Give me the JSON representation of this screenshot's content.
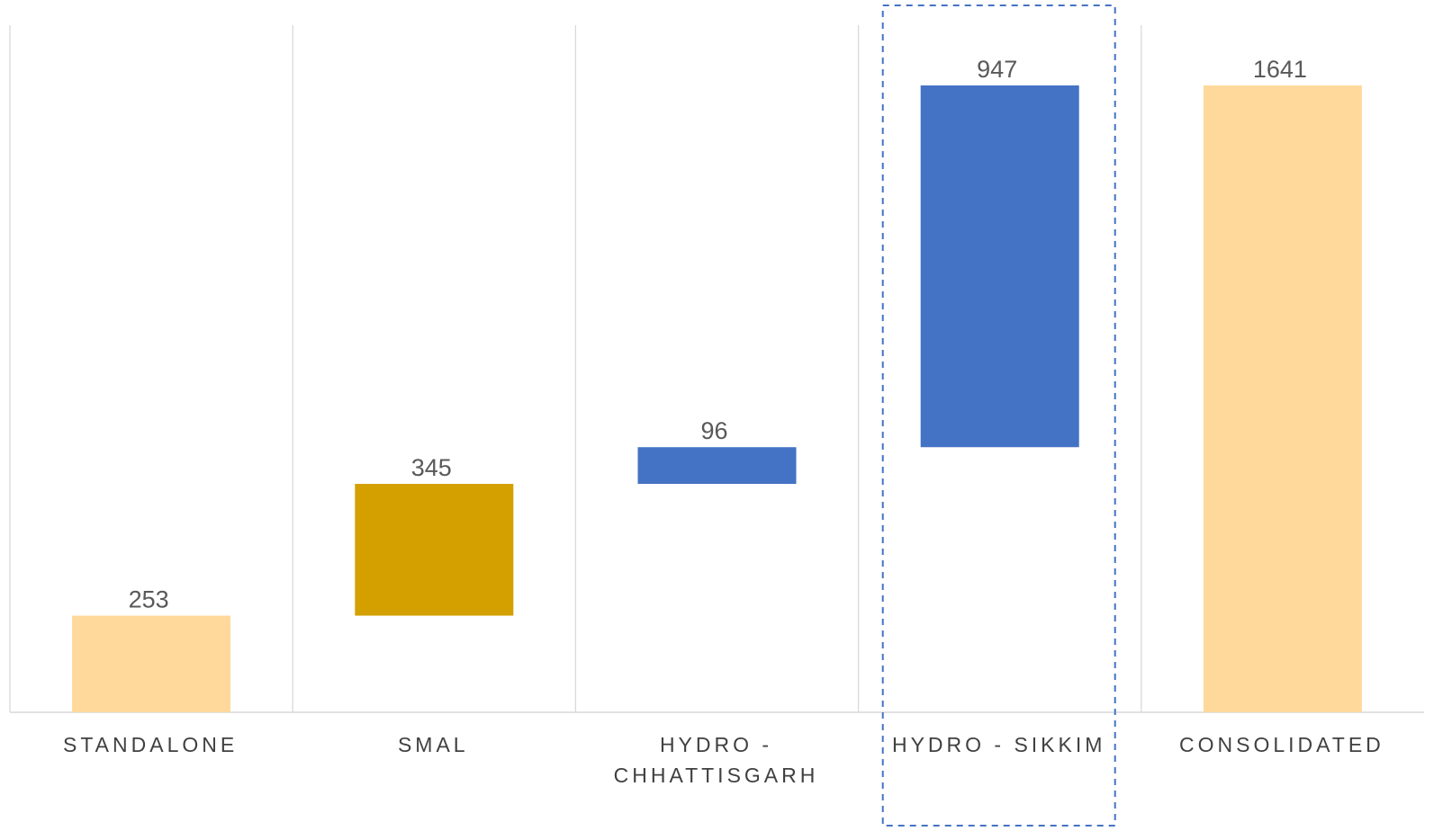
{
  "chart_data": {
    "type": "bar",
    "subtype": "waterfall",
    "categories": [
      "STANDALONE",
      "SMAL",
      "HYDRO - CHHATTISGARH",
      "HYDRO - SIKKIM",
      "CONSOLIDATED"
    ],
    "series": [
      {
        "values": [
          253,
          345,
          96,
          947,
          1641
        ],
        "kinds": [
          "total",
          "increase",
          "increase",
          "increase",
          "total"
        ]
      }
    ],
    "ylim": [
      0,
      1850
    ],
    "highlighted_category": "HYDRO - SIKKIM",
    "vertical_gridlines": true,
    "legend": "none",
    "colors": {
      "total": "#FFD99C",
      "smal": "#D4A000",
      "hydro": "#4472C4",
      "highlight_border": "#4472C4",
      "gridline": "#D9D9D9",
      "axis": "#D9D9D9",
      "value_label": "#595959",
      "category_label": "#404040"
    },
    "bar_colors": [
      "#FFD99C",
      "#D4A000",
      "#4472C4",
      "#4472C4",
      "#FFD99C"
    ]
  }
}
